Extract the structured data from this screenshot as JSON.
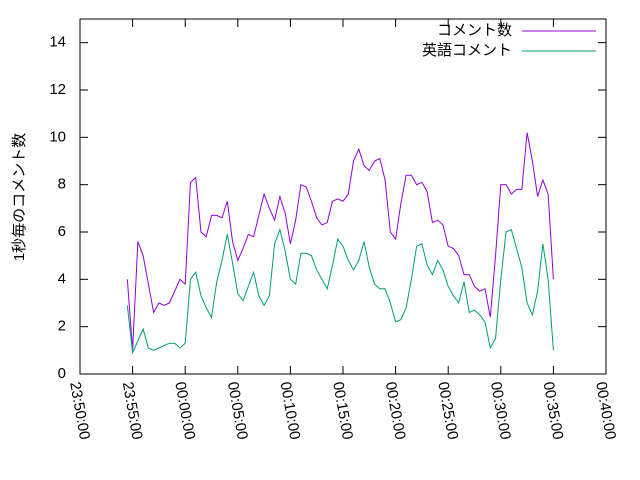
{
  "chart_data": {
    "type": "line",
    "ylabel": "1秒毎のコメント数",
    "x": [
      -5.5,
      -5,
      -4.5,
      -4,
      -3.5,
      -3,
      -2.5,
      -2,
      -1.5,
      -1,
      -0.5,
      0,
      0.5,
      1,
      1.5,
      2,
      2.5,
      3,
      3.5,
      4,
      4.5,
      5,
      5.5,
      6,
      6.5,
      7,
      7.5,
      8,
      8.5,
      9,
      9.5,
      10,
      10.5,
      11,
      11.5,
      12,
      12.5,
      13,
      13.5,
      14,
      14.5,
      15,
      15.5,
      16,
      16.5,
      17,
      17.5,
      18,
      18.5,
      19,
      19.5,
      20,
      20.5,
      21,
      21.5,
      22,
      22.5,
      23,
      23.5,
      24,
      24.5,
      25,
      25.5,
      26,
      26.5,
      27,
      27.5,
      28,
      28.5,
      29,
      29.5,
      30,
      30.5,
      31,
      31.5,
      32,
      32.5,
      33,
      33.5,
      34,
      34.5,
      35
    ],
    "series": [
      {
        "name": "コメント数",
        "color": "#9400d3",
        "values": [
          4.0,
          1.0,
          5.6,
          5.0,
          3.8,
          2.6,
          3.0,
          2.9,
          3.0,
          3.5,
          4.0,
          3.8,
          8.1,
          8.3,
          6.0,
          5.8,
          6.7,
          6.7,
          6.6,
          7.3,
          5.6,
          4.8,
          5.3,
          5.9,
          5.8,
          6.7,
          7.6,
          7.0,
          6.5,
          7.5,
          6.8,
          5.5,
          6.5,
          8.0,
          7.9,
          7.3,
          6.6,
          6.3,
          6.4,
          7.3,
          7.4,
          7.3,
          7.6,
          9.0,
          9.5,
          8.8,
          8.6,
          9.0,
          9.1,
          8.2,
          6.0,
          5.7,
          7.2,
          8.4,
          8.4,
          8.0,
          8.1,
          7.7,
          6.4,
          6.5,
          6.3,
          5.4,
          5.3,
          5.0,
          4.2,
          4.2,
          3.7,
          3.5,
          3.6,
          2.4,
          5.0,
          8.0,
          8.0,
          7.6,
          7.8,
          7.8,
          10.2,
          9.0,
          7.5,
          8.2,
          7.6,
          4.0
        ]
      },
      {
        "name": "英語コメント",
        "color": "#009e73",
        "values": [
          2.9,
          0.9,
          1.4,
          1.9,
          1.1,
          1.0,
          1.1,
          1.2,
          1.3,
          1.3,
          1.1,
          1.3,
          4.0,
          4.3,
          3.3,
          2.8,
          2.4,
          3.9,
          4.8,
          5.9,
          4.7,
          3.4,
          3.1,
          3.7,
          4.3,
          3.3,
          2.9,
          3.3,
          5.5,
          6.1,
          5.2,
          4.0,
          3.8,
          5.1,
          5.1,
          5.0,
          4.4,
          4.0,
          3.6,
          4.6,
          5.7,
          5.4,
          4.8,
          4.4,
          4.8,
          5.6,
          4.5,
          3.8,
          3.6,
          3.6,
          3.0,
          2.2,
          2.3,
          2.8,
          4.0,
          5.4,
          5.5,
          4.6,
          4.2,
          4.8,
          4.4,
          3.7,
          3.3,
          3.0,
          3.9,
          2.6,
          2.7,
          2.5,
          2.2,
          1.1,
          1.5,
          4.0,
          6.0,
          6.1,
          5.3,
          4.5,
          3.0,
          2.5,
          3.5,
          5.5,
          4.0,
          1.0
        ]
      }
    ],
    "xlim": [
      -10,
      40
    ],
    "xticks": [
      {
        "value": -10,
        "label": "23:50:00"
      },
      {
        "value": -5,
        "label": "23:55:00"
      },
      {
        "value": 0,
        "label": "00:00:00"
      },
      {
        "value": 5,
        "label": "00:05:00"
      },
      {
        "value": 10,
        "label": "00:10:00"
      },
      {
        "value": 15,
        "label": "00:15:00"
      },
      {
        "value": 20,
        "label": "00:20:00"
      },
      {
        "value": 25,
        "label": "00:25:00"
      },
      {
        "value": 30,
        "label": "00:30:00"
      },
      {
        "value": 35,
        "label": "00:35:00"
      },
      {
        "value": 40,
        "label": "00:40:00"
      }
    ],
    "ylim": [
      0,
      15
    ],
    "yticks": [
      0,
      2,
      4,
      6,
      8,
      10,
      12,
      14
    ],
    "legend": "upper right",
    "grid": false
  }
}
